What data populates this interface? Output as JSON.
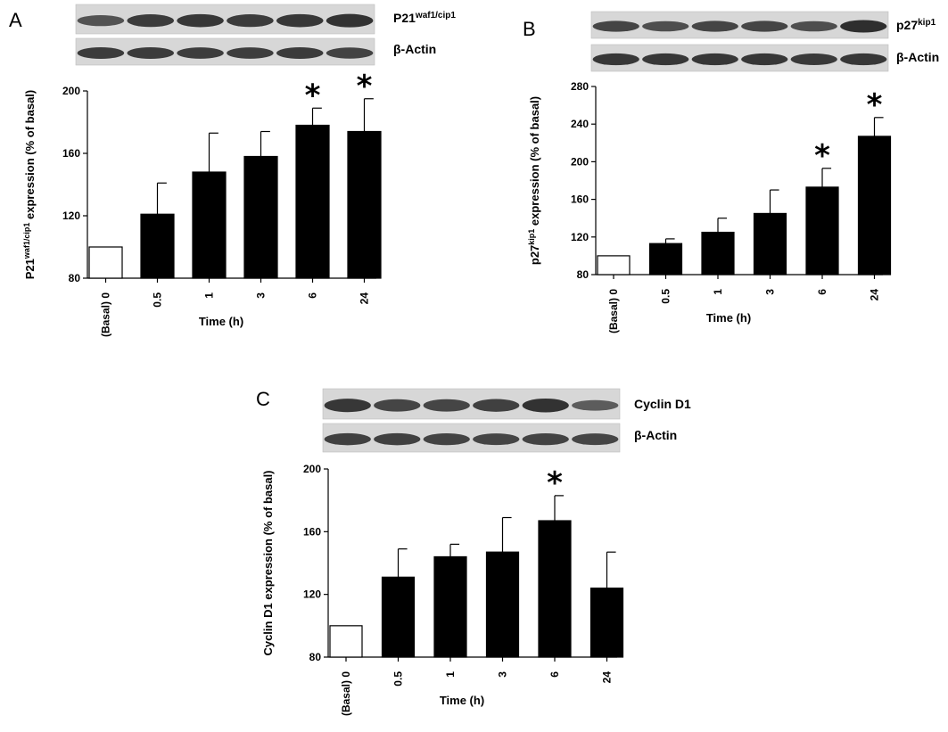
{
  "chart_data": [
    {
      "type": "bar",
      "panel": "A",
      "blot_labels": [
        {
          "main": "P21",
          "sup": "waf1/cip1"
        },
        {
          "main": "β-Actin",
          "sup": ""
        }
      ],
      "categories": [
        "(Basal) 0",
        "0.5",
        "1",
        "3",
        "6",
        "24"
      ],
      "values": [
        100,
        121,
        148,
        158,
        178,
        174
      ],
      "errors": [
        0,
        20,
        25,
        16,
        11,
        21
      ],
      "filled": [
        false,
        true,
        true,
        true,
        true,
        true
      ],
      "significant": [
        false,
        false,
        false,
        false,
        true,
        true
      ],
      "significance_marker": "*",
      "ylabel": {
        "pre": "P21",
        "sup": "waf1/cip1",
        "post": " expression (% of basal)"
      },
      "xlabel": "Time (h)",
      "ylim": [
        80,
        200
      ],
      "yticks": [
        80,
        120,
        160,
        200
      ],
      "band_intensity": [
        [
          0.55,
          0.8,
          0.85,
          0.8,
          0.85,
          0.9
        ],
        [
          0.8,
          0.8,
          0.78,
          0.78,
          0.8,
          0.72
        ]
      ]
    },
    {
      "type": "bar",
      "panel": "B",
      "blot_labels": [
        {
          "main": "p27",
          "sup": "kip1"
        },
        {
          "main": "β-Actin",
          "sup": ""
        }
      ],
      "categories": [
        "(Basal) 0",
        "0.5",
        "1",
        "3",
        "6",
        "24"
      ],
      "values": [
        100,
        113,
        125,
        145,
        173,
        227
      ],
      "errors": [
        0,
        5,
        15,
        25,
        20,
        20
      ],
      "filled": [
        false,
        true,
        true,
        true,
        true,
        true
      ],
      "significant": [
        false,
        false,
        false,
        false,
        true,
        true
      ],
      "significance_marker": "*",
      "ylabel": {
        "pre": "p27",
        "sup": "kip1",
        "post": " expression (% of basal)"
      },
      "xlabel": "Time (h)",
      "ylim": [
        80,
        280
      ],
      "yticks": [
        80,
        120,
        160,
        200,
        240,
        280
      ],
      "band_intensity": [
        [
          0.7,
          0.6,
          0.7,
          0.7,
          0.6,
          0.95
        ],
        [
          0.85,
          0.85,
          0.85,
          0.85,
          0.82,
          0.85
        ]
      ]
    },
    {
      "type": "bar",
      "panel": "C",
      "blot_labels": [
        {
          "main": "Cyclin D1",
          "sup": ""
        },
        {
          "main": "β-Actin",
          "sup": ""
        }
      ],
      "categories": [
        "(Basal) 0",
        "0.5",
        "1",
        "3",
        "6",
        "24"
      ],
      "values": [
        100,
        131,
        144,
        147,
        167,
        124
      ],
      "errors": [
        0,
        18,
        8,
        22,
        16,
        23
      ],
      "filled": [
        false,
        true,
        true,
        true,
        true,
        true
      ],
      "significant": [
        false,
        false,
        false,
        false,
        true,
        false
      ],
      "significance_marker": "*",
      "ylabel": {
        "pre": "Cyclin D1 expression (% of basal)",
        "sup": "",
        "post": ""
      },
      "xlabel": "Time (h)",
      "ylim": [
        80,
        200
      ],
      "yticks": [
        80,
        120,
        160,
        200
      ],
      "band_intensity": [
        [
          0.85,
          0.7,
          0.7,
          0.75,
          0.9,
          0.45
        ],
        [
          0.75,
          0.75,
          0.72,
          0.7,
          0.72,
          0.7
        ]
      ]
    }
  ]
}
